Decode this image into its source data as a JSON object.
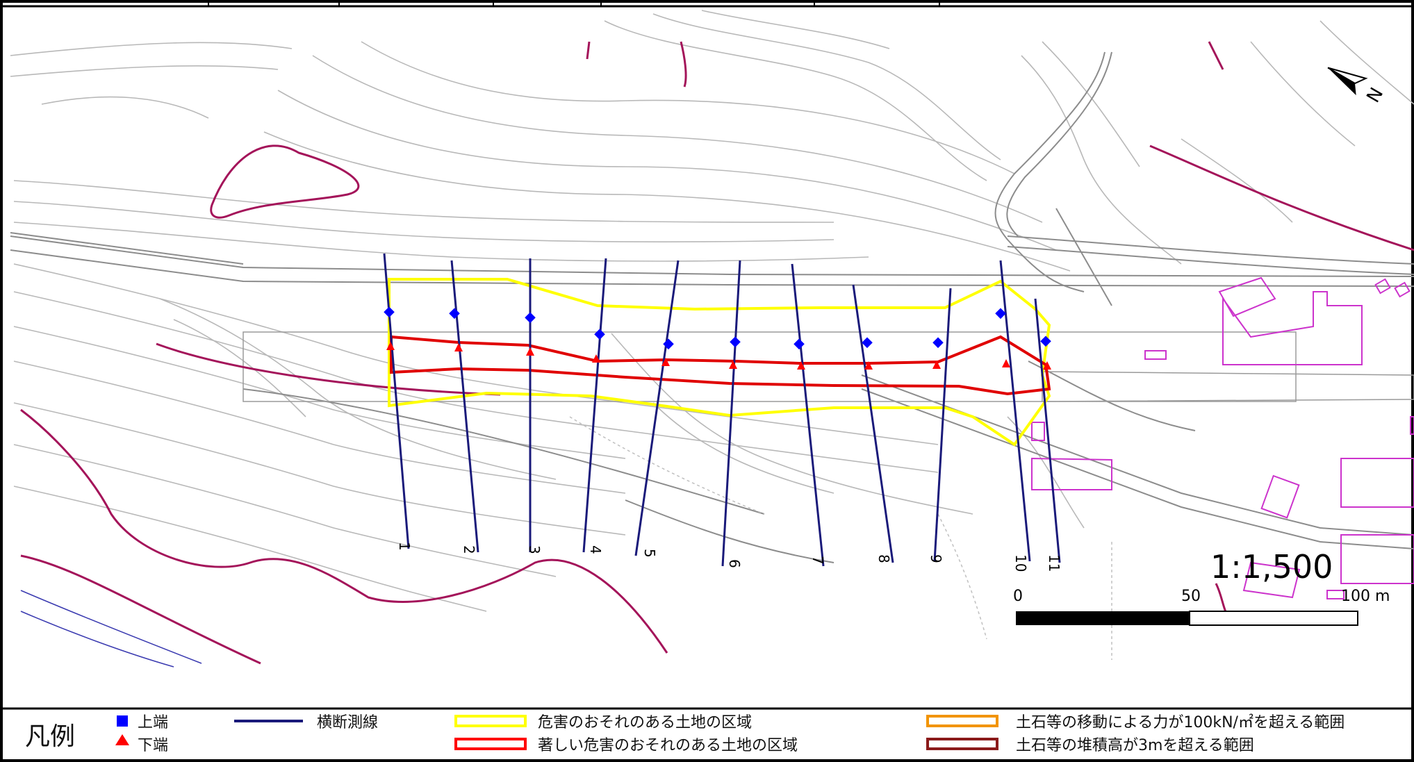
{
  "map": {
    "scale_ratio": "1:1,500",
    "scale_bar": {
      "ticks": [
        "0",
        "50",
        "100 m"
      ]
    },
    "north_label": "N",
    "survey_lines": [
      "1",
      "2",
      "3",
      "4",
      "5",
      "6",
      "7",
      "8",
      "9",
      "10",
      "11"
    ]
  },
  "legend": {
    "title": "凡例",
    "items": {
      "upper_edge": {
        "label": "上端",
        "color": "#0000ff",
        "icon": "square-icon"
      },
      "lower_edge": {
        "label": "下端",
        "color": "#ff0000",
        "icon": "triangle-icon"
      },
      "cross_section_line": {
        "label": "横断測線",
        "color": "#1a1a7a"
      },
      "hazard_zone": {
        "label": "危害のおそれのある土地の区域",
        "color": "#ffff00"
      },
      "severe_hazard_zone": {
        "label": "著しい危害のおそれのある土地の区域",
        "color": "#ff0000"
      },
      "force_zone": {
        "label": "土石等の移動による力が100kN/㎡を超える範囲",
        "color": "#f29400"
      },
      "deposit_zone": {
        "label": "土石等の堆積高が3mを超える範囲",
        "color": "#8b1a1a"
      }
    }
  }
}
